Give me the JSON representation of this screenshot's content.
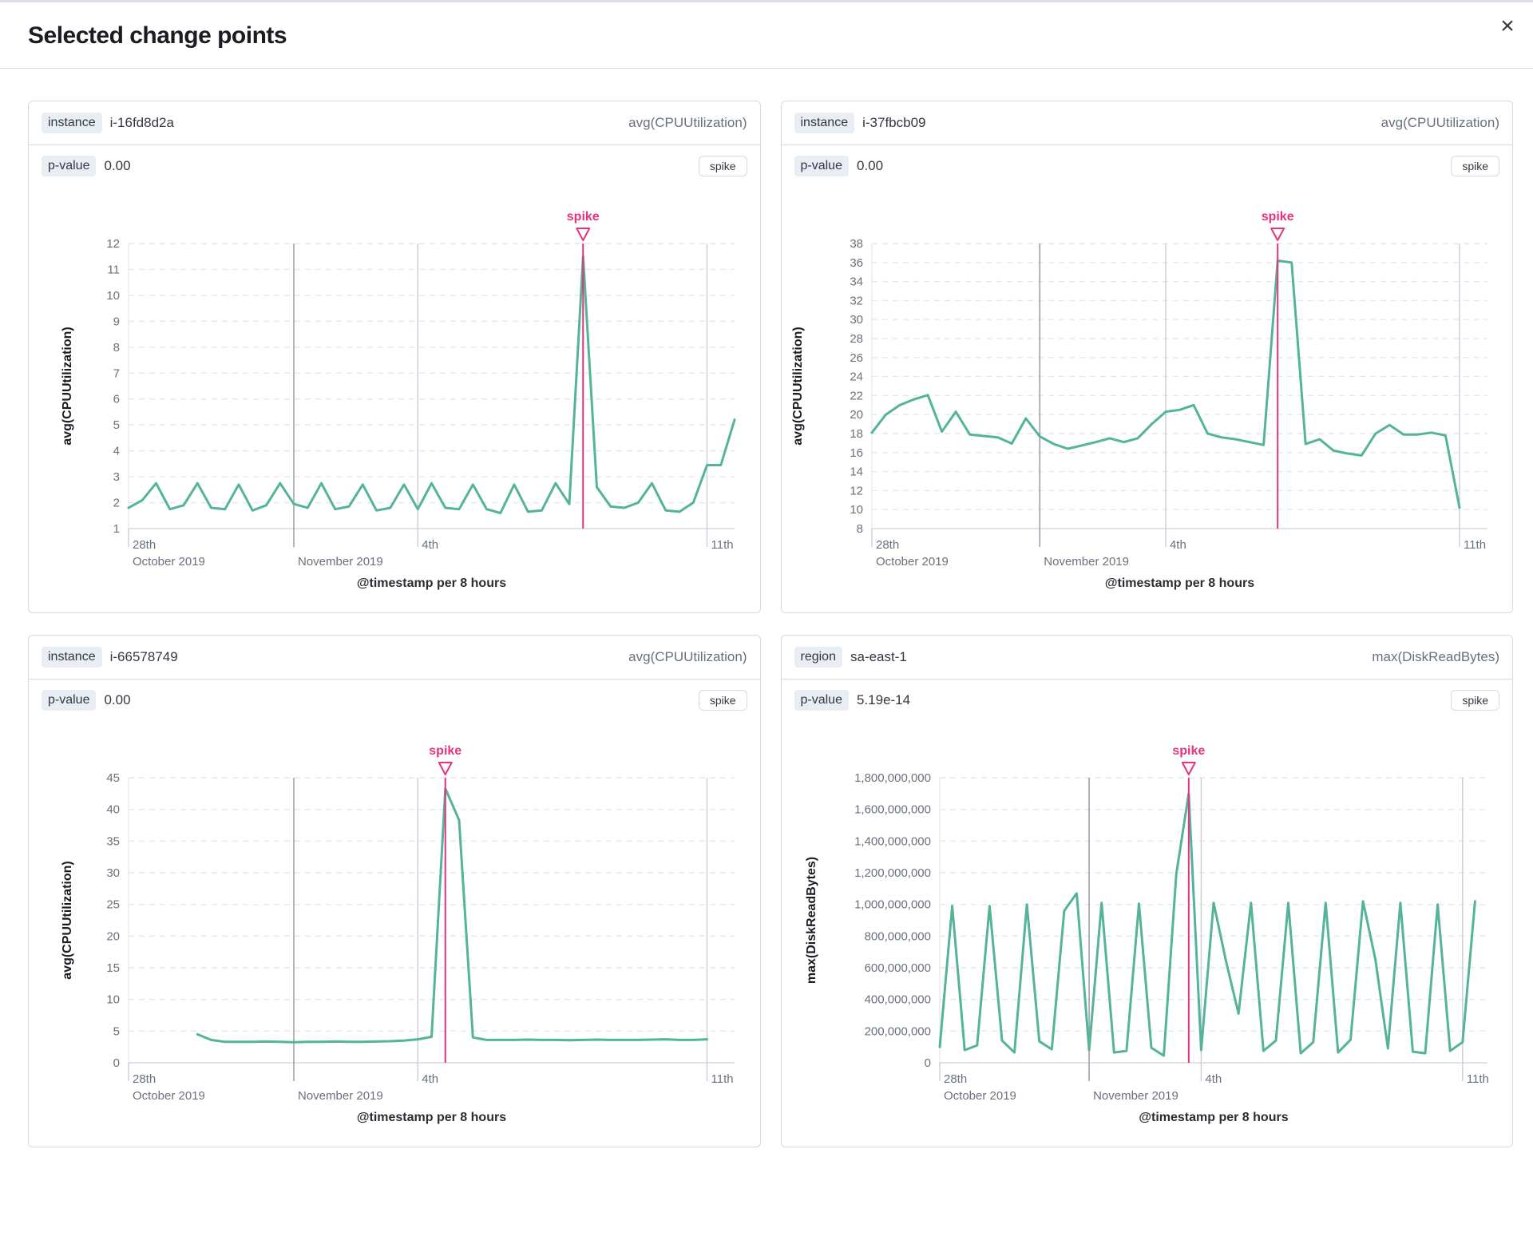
{
  "modal": {
    "title": "Selected change points",
    "close_icon": "×"
  },
  "colors": {
    "series_green": "#54b399",
    "annotation_pink": "#e5337f"
  },
  "cards": [
    {
      "badge": "instance",
      "badge_value": "i-16fd8d2a",
      "metric": "avg(CPUUtilization)",
      "pvalue_label": "p-value",
      "pvalue": "0.00",
      "change_type": "spike"
    },
    {
      "badge": "instance",
      "badge_value": "i-37fbcb09",
      "metric": "avg(CPUUtilization)",
      "pvalue_label": "p-value",
      "pvalue": "0.00",
      "change_type": "spike"
    },
    {
      "badge": "instance",
      "badge_value": "i-66578749",
      "metric": "avg(CPUUtilization)",
      "pvalue_label": "p-value",
      "pvalue": "0.00",
      "change_type": "spike"
    },
    {
      "badge": "region",
      "badge_value": "sa-east-1",
      "metric": "max(DiskReadBytes)",
      "pvalue_label": "p-value",
      "pvalue": "5.19e-14",
      "change_type": "spike"
    }
  ],
  "chart_data": [
    {
      "type": "line",
      "ylabel": "avg(CPUUtilization)",
      "xlabel": "@timestamp per 8 hours",
      "ymin": 1,
      "ymax": 12,
      "ytick_step": 1,
      "ytick_commas": false,
      "x_count": 45,
      "values": [
        1.8,
        2.1,
        2.75,
        1.75,
        1.9,
        2.75,
        1.8,
        1.75,
        2.7,
        1.7,
        1.9,
        2.75,
        1.95,
        1.8,
        2.75,
        1.75,
        1.85,
        2.7,
        1.7,
        1.8,
        2.7,
        1.75,
        2.75,
        1.8,
        1.75,
        2.7,
        1.75,
        1.6,
        2.7,
        1.65,
        1.7,
        2.75,
        1.95,
        11.5,
        2.6,
        1.85,
        1.8,
        2.0,
        2.75,
        1.7,
        1.65,
        2.0,
        3.45,
        3.45,
        5.2
      ],
      "spike_label": "spike",
      "spike_index": 33,
      "x_ticks": [
        {
          "index": 0,
          "label": "28th",
          "sublabel": "October 2019",
          "line": "tick"
        },
        {
          "index": 12,
          "label": "November 2019",
          "row": 2,
          "line": "strong"
        },
        {
          "index": 21,
          "label": "4th",
          "line": "light"
        },
        {
          "index": 42,
          "label": "11th",
          "line": "light"
        }
      ]
    },
    {
      "type": "line",
      "ylabel": "avg(CPUUtilization)",
      "xlabel": "@timestamp per 8 hours",
      "ymin": 8,
      "ymax": 38,
      "ytick_step": 2,
      "ytick_commas": false,
      "x_count": 45,
      "values": [
        18.1,
        20.0,
        21.0,
        21.6,
        22.05,
        18.2,
        20.3,
        17.9,
        17.75,
        17.6,
        16.95,
        19.6,
        17.7,
        16.9,
        16.4,
        16.75,
        17.1,
        17.5,
        17.1,
        17.5,
        19.0,
        20.3,
        20.5,
        21.0,
        18.0,
        17.6,
        17.4,
        17.1,
        16.8,
        36.2,
        36.0,
        16.9,
        17.4,
        16.2,
        15.9,
        15.7,
        18.0,
        18.9,
        17.9,
        17.9,
        18.1,
        17.8,
        10.2
      ],
      "spike_label": "spike",
      "spike_index": 29,
      "x_ticks": [
        {
          "index": 0,
          "label": "28th",
          "sublabel": "October 2019",
          "line": "tick"
        },
        {
          "index": 12,
          "label": "November 2019",
          "row": 2,
          "line": "strong"
        },
        {
          "index": 21,
          "label": "4th",
          "line": "light"
        },
        {
          "index": 42,
          "label": "11th",
          "line": "light"
        }
      ]
    },
    {
      "type": "line",
      "ylabel": "avg(CPUUtilization)",
      "xlabel": "@timestamp per 8 hours",
      "ymin": 0,
      "ymax": 45,
      "ytick_step": 5,
      "ytick_commas": false,
      "x_count": 45,
      "values": [
        null,
        null,
        null,
        null,
        null,
        4.5,
        3.6,
        3.3,
        3.3,
        3.3,
        3.35,
        3.3,
        3.25,
        3.3,
        3.3,
        3.35,
        3.3,
        3.3,
        3.35,
        3.4,
        3.5,
        3.7,
        4.1,
        43.3,
        38.3,
        4.0,
        3.6,
        3.6,
        3.6,
        3.65,
        3.6,
        3.6,
        3.55,
        3.6,
        3.65,
        3.6,
        3.6,
        3.6,
        3.65,
        3.7,
        3.6,
        3.6,
        3.7
      ],
      "spike_label": "spike",
      "spike_index": 23,
      "x_ticks": [
        {
          "index": 0,
          "label": "28th",
          "sublabel": "October 2019",
          "line": "tick"
        },
        {
          "index": 12,
          "label": "November 2019",
          "row": 2,
          "line": "strong"
        },
        {
          "index": 21,
          "label": "4th",
          "line": "light"
        },
        {
          "index": 42,
          "label": "11th",
          "line": "light"
        }
      ]
    },
    {
      "type": "line",
      "ylabel": "max(DiskReadBytes)",
      "xlabel": "@timestamp per 8 hours",
      "ymin": 0,
      "ymax": 1800000000,
      "ytick_step": 200000000,
      "ytick_commas": true,
      "x_count": 45,
      "values": [
        100000000,
        990000000,
        80000000,
        110000000,
        990000000,
        140000000,
        65000000,
        1000000000,
        135000000,
        85000000,
        960000000,
        1070000000,
        80000000,
        1010000000,
        65000000,
        75000000,
        1005000000,
        95000000,
        45000000,
        1190000000,
        1700000000,
        80000000,
        1010000000,
        640000000,
        310000000,
        1010000000,
        75000000,
        140000000,
        1010000000,
        60000000,
        130000000,
        1010000000,
        65000000,
        145000000,
        1020000000,
        650000000,
        90000000,
        1010000000,
        70000000,
        60000000,
        1000000000,
        75000000,
        130000000,
        1020000000
      ],
      "spike_label": "spike",
      "spike_index": 20,
      "x_ticks": [
        {
          "index": 0,
          "label": "28th",
          "sublabel": "October 2019",
          "line": "tick"
        },
        {
          "index": 12,
          "label": "November 2019",
          "row": 2,
          "line": "strong"
        },
        {
          "index": 21,
          "label": "4th",
          "line": "light"
        },
        {
          "index": 42,
          "label": "11th",
          "line": "light"
        }
      ]
    }
  ]
}
